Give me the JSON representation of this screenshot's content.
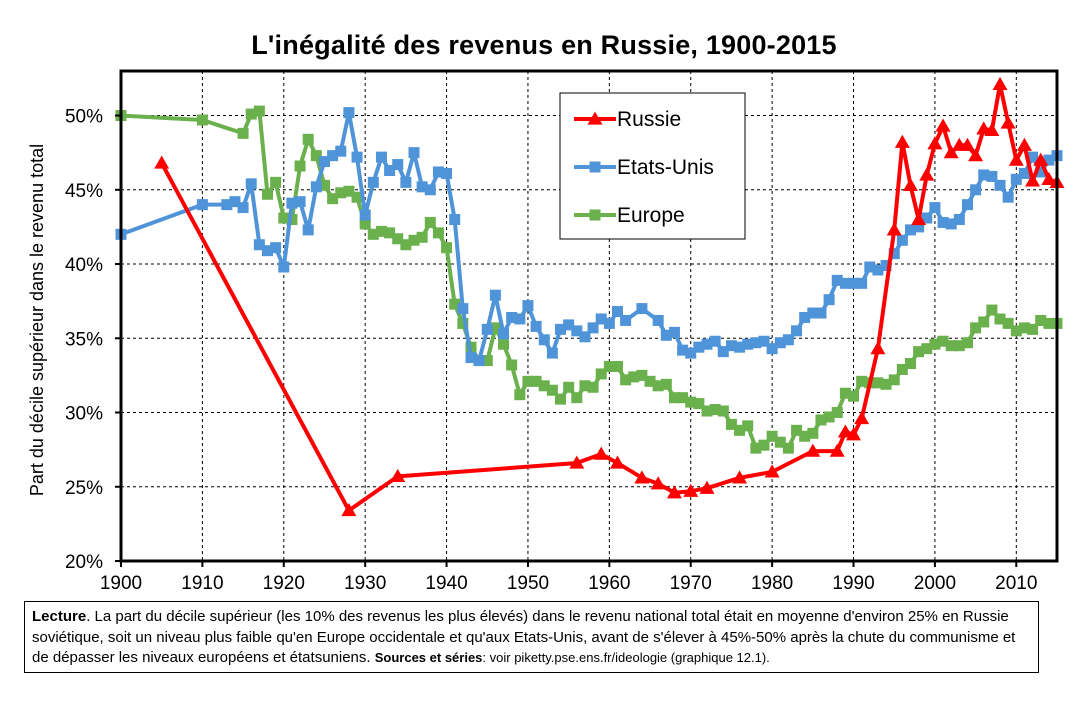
{
  "chart_data": {
    "type": "line",
    "title": "L'inégalité des revenus en Russie, 1900-2015",
    "ylabel": "Part du décile supérieur dans le revenu total",
    "xlim": [
      1900,
      2015
    ],
    "ylim": [
      0.2,
      0.53
    ],
    "xticks": [
      1900,
      1910,
      1920,
      1930,
      1940,
      1950,
      1960,
      1970,
      1980,
      1990,
      2000,
      2010
    ],
    "yticks": [
      0.2,
      0.25,
      0.3,
      0.35,
      0.4,
      0.45,
      0.5
    ],
    "ytick_labels": [
      "20%",
      "25%",
      "30%",
      "35%",
      "40%",
      "45%",
      "50%"
    ],
    "grid": "horizontal and vertical, dashed",
    "legend_position": "top-center",
    "series": [
      {
        "name": "Russie",
        "color": "#ff0000",
        "marker": "triangle",
        "points": [
          [
            1905,
            0.468
          ],
          [
            1928,
            0.234
          ],
          [
            1934,
            0.257
          ],
          [
            1956,
            0.266
          ],
          [
            1959,
            0.272
          ],
          [
            1961,
            0.266
          ],
          [
            1964,
            0.256
          ],
          [
            1966,
            0.252
          ],
          [
            1968,
            0.246
          ],
          [
            1970,
            0.247
          ],
          [
            1972,
            0.249
          ],
          [
            1976,
            0.256
          ],
          [
            1980,
            0.26
          ],
          [
            1985,
            0.274
          ],
          [
            1988,
            0.274
          ],
          [
            1989,
            0.287
          ],
          [
            1990,
            0.285
          ],
          [
            1991,
            0.296
          ],
          [
            1993,
            0.343
          ],
          [
            1995,
            0.423
          ],
          [
            1996,
            0.482
          ],
          [
            1997,
            0.453
          ],
          [
            1998,
            0.43
          ],
          [
            1999,
            0.46
          ],
          [
            2000,
            0.481
          ],
          [
            2001,
            0.493
          ],
          [
            2002,
            0.475
          ],
          [
            2003,
            0.48
          ],
          [
            2004,
            0.48
          ],
          [
            2005,
            0.473
          ],
          [
            2006,
            0.491
          ],
          [
            2007,
            0.49
          ],
          [
            2008,
            0.521
          ],
          [
            2009,
            0.495
          ],
          [
            2010,
            0.47
          ],
          [
            2011,
            0.48
          ],
          [
            2012,
            0.456
          ],
          [
            2013,
            0.47
          ],
          [
            2014,
            0.457
          ],
          [
            2015,
            0.455
          ]
        ]
      },
      {
        "name": "Etats-Unis",
        "color": "#4f94d8",
        "marker": "square",
        "points": [
          [
            1900,
            0.42
          ],
          [
            1910,
            0.44
          ],
          [
            1913,
            0.44
          ],
          [
            1914,
            0.442
          ],
          [
            1915,
            0.438
          ],
          [
            1916,
            0.454
          ],
          [
            1917,
            0.413
          ],
          [
            1918,
            0.409
          ],
          [
            1919,
            0.411
          ],
          [
            1920,
            0.398
          ],
          [
            1921,
            0.441
          ],
          [
            1922,
            0.442
          ],
          [
            1923,
            0.423
          ],
          [
            1924,
            0.452
          ],
          [
            1925,
            0.469
          ],
          [
            1926,
            0.473
          ],
          [
            1927,
            0.476
          ],
          [
            1928,
            0.502
          ],
          [
            1929,
            0.472
          ],
          [
            1930,
            0.433
          ],
          [
            1931,
            0.455
          ],
          [
            1932,
            0.472
          ],
          [
            1933,
            0.463
          ],
          [
            1934,
            0.467
          ],
          [
            1935,
            0.455
          ],
          [
            1936,
            0.475
          ],
          [
            1937,
            0.452
          ],
          [
            1938,
            0.45
          ],
          [
            1939,
            0.462
          ],
          [
            1940,
            0.461
          ],
          [
            1941,
            0.43
          ],
          [
            1942,
            0.37
          ],
          [
            1943,
            0.337
          ],
          [
            1944,
            0.335
          ],
          [
            1945,
            0.356
          ],
          [
            1946,
            0.379
          ],
          [
            1947,
            0.353
          ],
          [
            1948,
            0.364
          ],
          [
            1949,
            0.363
          ],
          [
            1950,
            0.372
          ],
          [
            1951,
            0.358
          ],
          [
            1952,
            0.349
          ],
          [
            1953,
            0.34
          ],
          [
            1954,
            0.356
          ],
          [
            1955,
            0.359
          ],
          [
            1956,
            0.355
          ],
          [
            1957,
            0.351
          ],
          [
            1958,
            0.357
          ],
          [
            1959,
            0.363
          ],
          [
            1960,
            0.36
          ],
          [
            1961,
            0.368
          ],
          [
            1962,
            0.362
          ],
          [
            1964,
            0.37
          ],
          [
            1966,
            0.362
          ],
          [
            1967,
            0.352
          ],
          [
            1968,
            0.354
          ],
          [
            1969,
            0.342
          ],
          [
            1970,
            0.34
          ],
          [
            1971,
            0.344
          ],
          [
            1972,
            0.346
          ],
          [
            1973,
            0.348
          ],
          [
            1974,
            0.341
          ],
          [
            1975,
            0.345
          ],
          [
            1976,
            0.344
          ],
          [
            1977,
            0.346
          ],
          [
            1978,
            0.347
          ],
          [
            1979,
            0.348
          ],
          [
            1980,
            0.343
          ],
          [
            1981,
            0.347
          ],
          [
            1982,
            0.349
          ],
          [
            1983,
            0.355
          ],
          [
            1984,
            0.364
          ],
          [
            1985,
            0.367
          ],
          [
            1986,
            0.367
          ],
          [
            1987,
            0.376
          ],
          [
            1988,
            0.389
          ],
          [
            1989,
            0.387
          ],
          [
            1990,
            0.387
          ],
          [
            1991,
            0.387
          ],
          [
            1992,
            0.398
          ],
          [
            1993,
            0.396
          ],
          [
            1994,
            0.399
          ],
          [
            1995,
            0.407
          ],
          [
            1996,
            0.416
          ],
          [
            1997,
            0.423
          ],
          [
            1998,
            0.425
          ],
          [
            1999,
            0.431
          ],
          [
            2000,
            0.438
          ],
          [
            2001,
            0.428
          ],
          [
            2002,
            0.427
          ],
          [
            2003,
            0.43
          ],
          [
            2004,
            0.44
          ],
          [
            2005,
            0.45
          ],
          [
            2006,
            0.46
          ],
          [
            2007,
            0.459
          ],
          [
            2008,
            0.453
          ],
          [
            2009,
            0.445
          ],
          [
            2010,
            0.457
          ],
          [
            2011,
            0.461
          ],
          [
            2012,
            0.472
          ],
          [
            2013,
            0.462
          ],
          [
            2014,
            0.47
          ],
          [
            2015,
            0.473
          ]
        ]
      },
      {
        "name": "Europe",
        "color": "#6ab04c",
        "marker": "square",
        "points": [
          [
            1900,
            0.5
          ],
          [
            1910,
            0.497
          ],
          [
            1915,
            0.488
          ],
          [
            1916,
            0.501
          ],
          [
            1917,
            0.503
          ],
          [
            1918,
            0.447
          ],
          [
            1919,
            0.455
          ],
          [
            1920,
            0.431
          ],
          [
            1921,
            0.43
          ],
          [
            1922,
            0.466
          ],
          [
            1923,
            0.484
          ],
          [
            1924,
            0.473
          ],
          [
            1925,
            0.453
          ],
          [
            1926,
            0.444
          ],
          [
            1927,
            0.448
          ],
          [
            1928,
            0.449
          ],
          [
            1929,
            0.445
          ],
          [
            1930,
            0.427
          ],
          [
            1931,
            0.42
          ],
          [
            1932,
            0.422
          ],
          [
            1933,
            0.421
          ],
          [
            1934,
            0.417
          ],
          [
            1935,
            0.413
          ],
          [
            1936,
            0.416
          ],
          [
            1937,
            0.418
          ],
          [
            1938,
            0.428
          ],
          [
            1939,
            0.421
          ],
          [
            1940,
            0.411
          ],
          [
            1941,
            0.373
          ],
          [
            1942,
            0.36
          ],
          [
            1943,
            0.344
          ],
          [
            1944,
            0.335
          ],
          [
            1945,
            0.335
          ],
          [
            1946,
            0.357
          ],
          [
            1947,
            0.346
          ],
          [
            1948,
            0.332
          ],
          [
            1949,
            0.312
          ],
          [
            1950,
            0.321
          ],
          [
            1951,
            0.321
          ],
          [
            1952,
            0.318
          ],
          [
            1953,
            0.315
          ],
          [
            1954,
            0.309
          ],
          [
            1955,
            0.317
          ],
          [
            1956,
            0.31
          ],
          [
            1957,
            0.318
          ],
          [
            1958,
            0.317
          ],
          [
            1959,
            0.326
          ],
          [
            1960,
            0.331
          ],
          [
            1961,
            0.331
          ],
          [
            1962,
            0.322
          ],
          [
            1963,
            0.324
          ],
          [
            1964,
            0.325
          ],
          [
            1965,
            0.321
          ],
          [
            1966,
            0.318
          ],
          [
            1967,
            0.319
          ],
          [
            1968,
            0.31
          ],
          [
            1969,
            0.31
          ],
          [
            1970,
            0.307
          ],
          [
            1971,
            0.306
          ],
          [
            1972,
            0.301
          ],
          [
            1973,
            0.302
          ],
          [
            1974,
            0.301
          ],
          [
            1975,
            0.292
          ],
          [
            1976,
            0.288
          ],
          [
            1977,
            0.291
          ],
          [
            1978,
            0.276
          ],
          [
            1979,
            0.278
          ],
          [
            1980,
            0.284
          ],
          [
            1981,
            0.28
          ],
          [
            1982,
            0.276
          ],
          [
            1983,
            0.288
          ],
          [
            1984,
            0.284
          ],
          [
            1985,
            0.286
          ],
          [
            1986,
            0.295
          ],
          [
            1987,
            0.297
          ],
          [
            1988,
            0.3
          ],
          [
            1989,
            0.313
          ],
          [
            1990,
            0.311
          ],
          [
            1991,
            0.321
          ],
          [
            1992,
            0.32
          ],
          [
            1993,
            0.32
          ],
          [
            1994,
            0.319
          ],
          [
            1995,
            0.322
          ],
          [
            1996,
            0.329
          ],
          [
            1997,
            0.333
          ],
          [
            1998,
            0.341
          ],
          [
            1999,
            0.343
          ],
          [
            2000,
            0.346
          ],
          [
            2001,
            0.348
          ],
          [
            2002,
            0.345
          ],
          [
            2003,
            0.345
          ],
          [
            2004,
            0.347
          ],
          [
            2005,
            0.357
          ],
          [
            2006,
            0.361
          ],
          [
            2007,
            0.369
          ],
          [
            2008,
            0.363
          ],
          [
            2009,
            0.36
          ],
          [
            2010,
            0.355
          ],
          [
            2011,
            0.357
          ],
          [
            2012,
            0.356
          ],
          [
            2013,
            0.362
          ],
          [
            2014,
            0.36
          ],
          [
            2015,
            0.36
          ]
        ]
      }
    ]
  },
  "caption": {
    "lead": "Lecture",
    "text": ". La part du décile supérieur (les 10% des revenus les plus élevés) dans le revenu national total était en moyenne d'environ 25% en Russie soviétique, soit un niveau plus faible qu'en Europe occidentale et qu'aux Etats-Unis, avant de s'élever à 45%-50% après la chute du communisme et de dépasser les niveaux européens et étatsuniens. ",
    "sources_label": "Sources et séries",
    "sources_text": ": voir piketty.pse.ens.fr/ideologie (graphique 12.1)."
  }
}
